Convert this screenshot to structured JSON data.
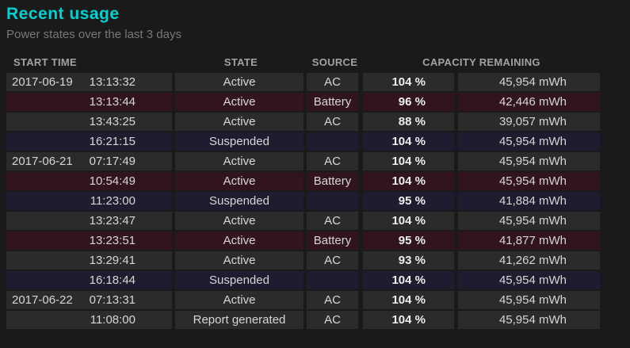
{
  "page": {
    "title": "Recent usage",
    "subtitle": "Power states over the last 3 days"
  },
  "table": {
    "headers": [
      "START TIME",
      "STATE",
      "SOURCE",
      "CAPACITY REMAINING"
    ],
    "rows": [
      {
        "date": "2017-06-19",
        "time": "13:13:32",
        "state": "Active",
        "source": "AC",
        "percent": "104 %",
        "mwh": "45,954 mWh",
        "variant": "ac"
      },
      {
        "date": "",
        "time": "13:13:44",
        "state": "Active",
        "source": "Battery",
        "percent": "96 %",
        "mwh": "42,446 mWh",
        "variant": "battery"
      },
      {
        "date": "",
        "time": "13:43:25",
        "state": "Active",
        "source": "AC",
        "percent": "88 %",
        "mwh": "39,057 mWh",
        "variant": "ac"
      },
      {
        "date": "",
        "time": "16:21:15",
        "state": "Suspended",
        "source": "",
        "percent": "104 %",
        "mwh": "45,954 mWh",
        "variant": "suspended"
      },
      {
        "date": "2017-06-21",
        "time": "07:17:49",
        "state": "Active",
        "source": "AC",
        "percent": "104 %",
        "mwh": "45,954 mWh",
        "variant": "ac"
      },
      {
        "date": "",
        "time": "10:54:49",
        "state": "Active",
        "source": "Battery",
        "percent": "104 %",
        "mwh": "45,954 mWh",
        "variant": "battery"
      },
      {
        "date": "",
        "time": "11:23:00",
        "state": "Suspended",
        "source": "",
        "percent": "95 %",
        "mwh": "41,884 mWh",
        "variant": "suspended"
      },
      {
        "date": "",
        "time": "13:23:47",
        "state": "Active",
        "source": "AC",
        "percent": "104 %",
        "mwh": "45,954 mWh",
        "variant": "ac"
      },
      {
        "date": "",
        "time": "13:23:51",
        "state": "Active",
        "source": "Battery",
        "percent": "95 %",
        "mwh": "41,877 mWh",
        "variant": "battery"
      },
      {
        "date": "",
        "time": "13:29:41",
        "state": "Active",
        "source": "AC",
        "percent": "93 %",
        "mwh": "41,262 mWh",
        "variant": "ac"
      },
      {
        "date": "",
        "time": "16:18:44",
        "state": "Suspended",
        "source": "",
        "percent": "104 %",
        "mwh": "45,954 mWh",
        "variant": "suspended"
      },
      {
        "date": "2017-06-22",
        "time": "07:13:31",
        "state": "Active",
        "source": "AC",
        "percent": "104 %",
        "mwh": "45,954 mWh",
        "variant": "ac"
      },
      {
        "date": "",
        "time": "11:08:00",
        "state": "Report generated",
        "source": "AC",
        "percent": "104 %",
        "mwh": "45,954 mWh",
        "variant": "ac"
      }
    ]
  },
  "colors": {
    "background": "#1a1a1a",
    "accent_title": "#00d1d1",
    "subtitle_text": "#787878",
    "header_text": "#a2a2a2",
    "cell_text": "#d6d6d6",
    "percent_text": "#eeeeee",
    "row_ac": "#2b2b2b",
    "row_battery": "#311420",
    "row_suspended": "#1d1d2f"
  }
}
